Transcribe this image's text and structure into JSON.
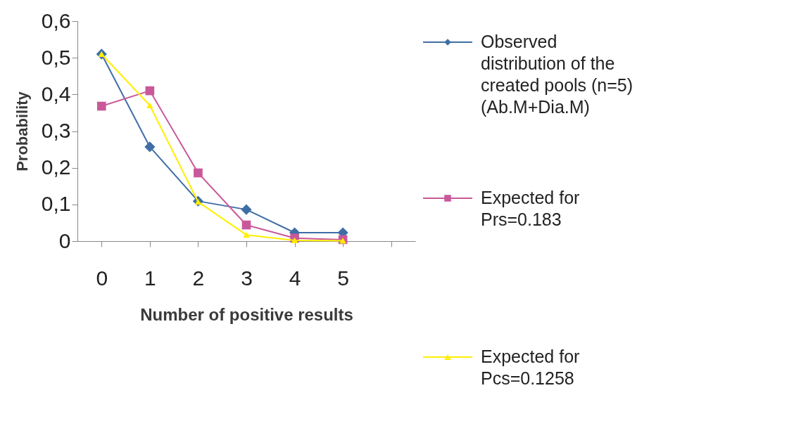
{
  "chart_data": {
    "type": "line",
    "xlabel": "Number of positive results",
    "ylabel": "Probability",
    "categories": [
      "0",
      "1",
      "2",
      "3",
      "4",
      "5",
      null
    ],
    "series": [
      {
        "name": "Observed distribution of the created pools (n=5) (Ab.M+Dia.M)",
        "color": "#3f6ea6",
        "marker": "diamond",
        "values": [
          0.51,
          0.257,
          0.109,
          0.086,
          0.023,
          0.023,
          null
        ]
      },
      {
        "name": "Expected for Prs=0.183",
        "color": "#c9589a",
        "marker": "square",
        "values": [
          0.368,
          0.41,
          0.186,
          0.044,
          0.008,
          0.004,
          null
        ]
      },
      {
        "name": "Expected for Pcs=0.1258",
        "color": "#ffee00",
        "marker": "triangle",
        "values": [
          0.51,
          0.37,
          0.107,
          0.017,
          0.002,
          0.001,
          null
        ]
      }
    ],
    "ylim": [
      0,
      0.6
    ],
    "yticks": [
      0,
      {
        "value": 0.1,
        "label": "0,1"
      },
      {
        "value": 0.2,
        "label": "0,2"
      },
      {
        "value": 0.3,
        "label": "0,3"
      },
      {
        "value": 0.4,
        "label": "0,4"
      },
      {
        "value": 0.5,
        "label": "0,5"
      },
      {
        "value": 0.6,
        "label": "0,6"
      }
    ],
    "grid": false,
    "legend": "right",
    "line_style": "solid"
  }
}
